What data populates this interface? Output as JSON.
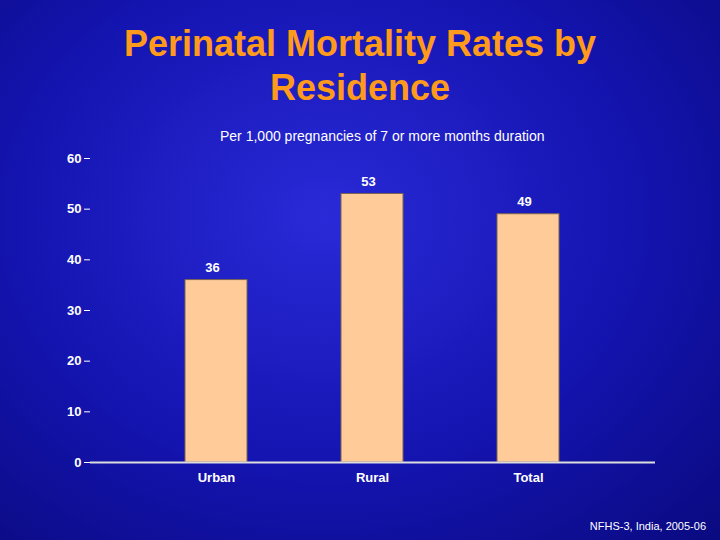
{
  "chart_data": {
    "type": "bar",
    "title": "Perinatal Mortality Rates by Residence",
    "subtitle": "Per 1,000 pregnancies of 7 or more months duration",
    "caption": "NFHS-3, India, 2005-06",
    "categories": [
      "Urban",
      "Rural",
      "Total"
    ],
    "values": [
      36,
      53,
      49
    ],
    "color": "#ffcc99",
    "ylim": [
      0,
      60
    ],
    "yticks": [
      0,
      10,
      20,
      30,
      40,
      50,
      60
    ],
    "grid": false,
    "data_labels": true
  }
}
